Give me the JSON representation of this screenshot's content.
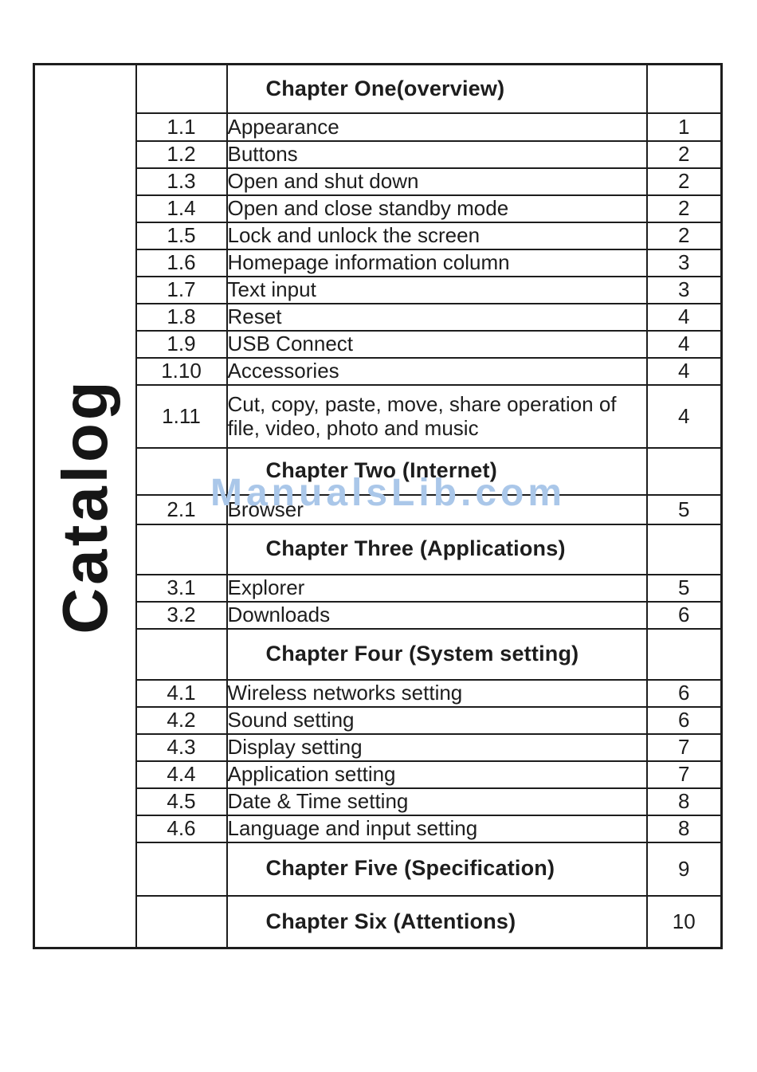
{
  "page": {
    "sidebar_label": "Catalog",
    "watermark": "ManualsLib.com",
    "colors": {
      "text": "#1d1d1d",
      "border": "#1d1d1d",
      "watermark": "#aac7e9"
    }
  },
  "toc": {
    "rows": [
      {
        "type": "chapter",
        "num": "",
        "title": "Chapter One(overview)",
        "page": ""
      },
      {
        "type": "item",
        "num": "1.1",
        "title": "Appearance",
        "page": "1"
      },
      {
        "type": "item",
        "num": "1.2",
        "title": "Buttons",
        "page": "2"
      },
      {
        "type": "item",
        "num": "1.3",
        "title": "Open and shut down",
        "page": "2"
      },
      {
        "type": "item",
        "num": "1.4",
        "title": "Open and close standby mode",
        "page": "2"
      },
      {
        "type": "item",
        "num": "1.5",
        "title": "Lock and unlock the screen",
        "page": "2"
      },
      {
        "type": "item",
        "num": "1.6",
        "title": "Homepage information column",
        "page": "3"
      },
      {
        "type": "item",
        "num": "1.7",
        "title": "Text input",
        "page": "3"
      },
      {
        "type": "item",
        "num": "1.8",
        "title": "Reset",
        "page": "4"
      },
      {
        "type": "item",
        "num": "1.9",
        "title": "USB Connect",
        "page": "4"
      },
      {
        "type": "item",
        "num": "1.10",
        "title": "Accessories",
        "page": "4"
      },
      {
        "type": "item",
        "num": "1.11",
        "title": "Cut, copy, paste, move, share operation of file, video, photo and music",
        "page": "4"
      },
      {
        "type": "chapter",
        "num": "",
        "title": "Chapter Two (Internet)",
        "page": ""
      },
      {
        "type": "item",
        "num": "2.1",
        "title": "Browser",
        "page": "5"
      },
      {
        "type": "chapter",
        "num": "",
        "title": "Chapter Three (Applications)",
        "page": ""
      },
      {
        "type": "item",
        "num": "3.1",
        "title": "Explorer",
        "page": "5"
      },
      {
        "type": "item",
        "num": "3.2",
        "title": "Downloads",
        "page": "6"
      },
      {
        "type": "chapter",
        "num": "",
        "title": "Chapter Four (System setting)",
        "page": ""
      },
      {
        "type": "item",
        "num": "4.1",
        "title": "Wireless networks setting",
        "page": "6"
      },
      {
        "type": "item",
        "num": "4.2",
        "title": "Sound setting",
        "page": "6"
      },
      {
        "type": "item",
        "num": "4.3",
        "title": "Display setting",
        "page": "7"
      },
      {
        "type": "item",
        "num": "4.4",
        "title": "Application  setting",
        "page": "7"
      },
      {
        "type": "item",
        "num": "4.5",
        "title": "Date & Time setting",
        "page": "8"
      },
      {
        "type": "item",
        "num": "4.6",
        "title": "Language and input setting",
        "page": "8"
      },
      {
        "type": "chapter",
        "num": "",
        "title": "Chapter Five (Specification)",
        "page": "9"
      },
      {
        "type": "chapter",
        "num": "",
        "title": "Chapter Six (Attentions)",
        "page": "10"
      }
    ]
  }
}
